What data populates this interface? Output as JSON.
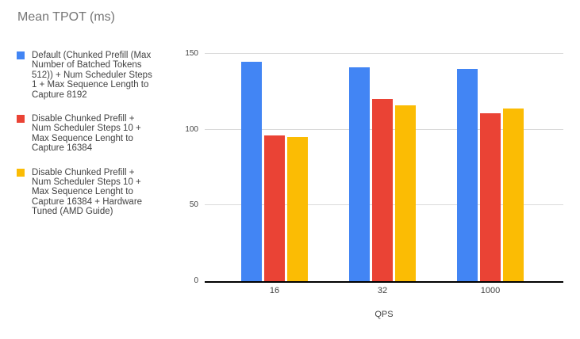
{
  "title": "Mean TPOT (ms)",
  "colors": {
    "series_blue": "#4285F4",
    "series_red": "#EA4335",
    "series_yellow": "#FBBC04",
    "title_text": "#757575",
    "body_text": "#424242",
    "gridline": "#dadada",
    "axis_line": "#000000"
  },
  "legend": {
    "items": [
      {
        "color": "#4285F4",
        "label": "Default (Chunked Prefill (Max Number of Batched Tokens 512)) + Num Scheduler Steps 1 + Max Sequence Length to Capture 8192",
        "lines": [
          "Default (Chunked Prefill (Max",
          "Number of Batched Tokens",
          "512)) + Num Scheduler Steps",
          "1 + Max Sequence Length to",
          "Capture 8192"
        ]
      },
      {
        "color": "#EA4335",
        "label": "Disable Chunked Prefill + Num Scheduler Steps 10 + Max Sequence Lenght to Capture 16384",
        "lines": [
          "Disable Chunked Prefill +",
          "Num Scheduler Steps 10 +",
          "Max Sequence Lenght to",
          "Capture 16384"
        ]
      },
      {
        "color": "#FBBC04",
        "label": "Disable Chunked Prefill + Num Scheduler Steps 10 + Max Sequence Lenght to Capture 16384 + Hardware Tuned (AMD Guide)",
        "lines": [
          "Disable Chunked Prefill +",
          "Num Scheduler Steps 10 +",
          "Max Sequence Lenght to",
          "Capture 16384 + Hardware",
          "Tuned (AMD Guide)"
        ]
      }
    ]
  },
  "chart_data": {
    "type": "bar",
    "title": "Mean TPOT (ms)",
    "categories": [
      "16",
      "32",
      "1000"
    ],
    "series": [
      {
        "name": "Default (Chunked Prefill (Max Number of Batched Tokens 512)) + Num Scheduler Steps 1 + Max Sequence Length to Capture 8192",
        "color": "#4285F4",
        "values": [
          145,
          141,
          140
        ]
      },
      {
        "name": "Disable Chunked Prefill + Num Scheduler Steps 10 + Max Sequence Lenght to Capture 16384",
        "color": "#EA4335",
        "values": [
          96,
          120,
          111
        ]
      },
      {
        "name": "Disable Chunked Prefill + Num Scheduler Steps 10 + Max Sequence Lenght to Capture 16384 + Hardware Tuned (AMD Guide)",
        "color": "#FBBC04",
        "values": [
          95,
          116,
          114
        ]
      }
    ],
    "xlabel": "QPS",
    "ylabel": "",
    "ylim": [
      0,
      150
    ],
    "yticks": [
      0,
      50,
      100,
      150
    ],
    "grid": true,
    "legend_position": "left"
  }
}
